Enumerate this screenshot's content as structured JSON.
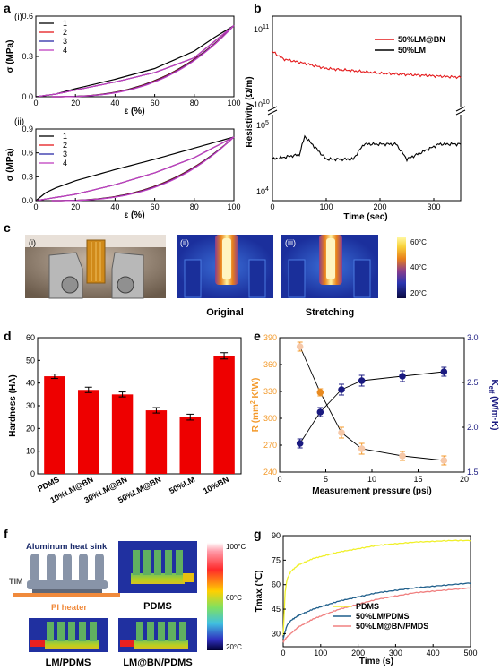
{
  "panels": {
    "a": {
      "letter": "a",
      "sub1": "(i)",
      "sub2": "(ii)",
      "ylabel": "σ (MPa)",
      "xlabel": "ε (%)",
      "legend": [
        "1",
        "2",
        "3",
        "4"
      ],
      "colors": [
        "#000000",
        "#e41a1c",
        "#2b2ba8",
        "#c040c0"
      ],
      "ticks_x": [
        "0",
        "20",
        "40",
        "60",
        "80",
        "100"
      ],
      "ticks_y_i": [
        "0.0",
        "0.3",
        "0.6"
      ],
      "ticks_y_ii": [
        "0.0",
        "0.3",
        "0.6",
        "0.9"
      ]
    },
    "b": {
      "letter": "b",
      "ylabel": "Resistivity (Ω/m)",
      "xlabel": "Time (sec)",
      "legend": [
        "50%LM@BN",
        "50%LM"
      ],
      "colors": [
        "#e41a1c",
        "#000000"
      ],
      "ticks_x": [
        "0",
        "100",
        "200",
        "300"
      ],
      "ytick_top": "10",
      "ytick_top_exp": "11",
      "ytick_mid": "10",
      "ytick_mid_exp": "10",
      "ytick_low": "10",
      "ytick_low_exp": "5",
      "ytick_bot": "10",
      "ytick_bot_exp": "4"
    },
    "c": {
      "letter": "c",
      "sub1": "(i)",
      "sub2": "(ii)",
      "sub3": "(iii)",
      "caption2": "Original",
      "caption3": "Stretching",
      "scale": [
        "60°C",
        "40°C",
        "20°C"
      ]
    },
    "d": {
      "letter": "d",
      "ylabel": "Hardness (HA)",
      "bar_color": "#ee0000",
      "ticks_y": [
        "0",
        "10",
        "20",
        "30",
        "40",
        "50",
        "60"
      ]
    },
    "e": {
      "letter": "e",
      "ylabel_left": "R (mm",
      "ylabel_left_sup": "2",
      "ylabel_left_end": " K/W)",
      "ylabel_right": "K",
      "ylabel_right_sub": "eff",
      "ylabel_right_end": " (W/m·K)",
      "xlabel": "Measurement pressure (psi)",
      "left_color": "#f39a2b",
      "right_color": "#1a1a80",
      "ticks_x": [
        "0",
        "5",
        "10",
        "15",
        "20"
      ],
      "ticks_left": [
        "240",
        "270",
        "300",
        "330",
        "360",
        "390"
      ],
      "ticks_right": [
        "1.5",
        "2.0",
        "2.5",
        "3.0"
      ]
    },
    "f": {
      "letter": "f",
      "label_sink": "Aluminum heat sink",
      "label_tim": "TIM",
      "label_heater": "PI heater",
      "caption_pdms": "PDMS",
      "caption_lm": "LM/PDMS",
      "caption_lmbn": "LM@BN/PDMS",
      "scale": [
        "100°C",
        "60°C",
        "20°C"
      ]
    },
    "g": {
      "letter": "g",
      "ylabel": "Tmax (℃)",
      "xlabel": "Time (s)",
      "legend": [
        "PDMS",
        "50%LM/PDMS",
        "50%LM@BN/PMDS"
      ],
      "colors": [
        "#f0f02a",
        "#1f5f8b",
        "#f08080"
      ],
      "ticks_x": [
        "0",
        "100",
        "200",
        "300",
        "400",
        "500"
      ],
      "ticks_y": [
        "30",
        "45",
        "60",
        "75",
        "90"
      ]
    }
  },
  "chart_data": [
    {
      "type": "line",
      "panel": "a(i)",
      "xlabel": "ε (%)",
      "ylabel": "σ (MPa)",
      "xlim": [
        0,
        100
      ],
      "ylim": [
        0,
        0.6
      ],
      "series": [
        {
          "name": "1",
          "x": [
            0,
            10,
            20,
            40,
            60,
            80,
            90,
            100
          ],
          "y": [
            0,
            0.02,
            0.06,
            0.13,
            0.21,
            0.34,
            0.44,
            0.53
          ]
        },
        {
          "name": "2",
          "x": [
            0,
            10,
            20,
            40,
            60,
            80,
            100
          ],
          "y": [
            0,
            0.02,
            0.05,
            0.11,
            0.18,
            0.29,
            0.53
          ]
        },
        {
          "name": "3",
          "x": [
            0,
            10,
            20,
            40,
            60,
            80,
            100
          ],
          "y": [
            0,
            0.02,
            0.05,
            0.11,
            0.18,
            0.29,
            0.53
          ]
        },
        {
          "name": "4",
          "x": [
            0,
            10,
            20,
            40,
            60,
            80,
            100
          ],
          "y": [
            0,
            0.02,
            0.05,
            0.11,
            0.18,
            0.29,
            0.53
          ]
        }
      ]
    },
    {
      "type": "line",
      "panel": "a(ii)",
      "xlabel": "ε (%)",
      "ylabel": "σ (MPa)",
      "xlim": [
        0,
        100
      ],
      "ylim": [
        0,
        0.9
      ],
      "series": [
        {
          "name": "1",
          "x": [
            0,
            5,
            10,
            20,
            40,
            60,
            80,
            100
          ],
          "y": [
            0,
            0.1,
            0.16,
            0.25,
            0.39,
            0.52,
            0.66,
            0.8
          ]
        },
        {
          "name": "2",
          "x": [
            0,
            20,
            40,
            60,
            80,
            100
          ],
          "y": [
            0,
            0.08,
            0.2,
            0.35,
            0.54,
            0.8
          ]
        },
        {
          "name": "3",
          "x": [
            0,
            20,
            40,
            60,
            80,
            100
          ],
          "y": [
            0,
            0.08,
            0.2,
            0.35,
            0.54,
            0.8
          ]
        },
        {
          "name": "4",
          "x": [
            0,
            20,
            40,
            60,
            80,
            100
          ],
          "y": [
            0,
            0.08,
            0.2,
            0.35,
            0.54,
            0.8
          ]
        }
      ]
    },
    {
      "type": "line",
      "panel": "b",
      "xlabel": "Time (sec)",
      "ylabel": "Resistivity (Ω/m)",
      "xlim": [
        0,
        350
      ],
      "series": [
        {
          "name": "50%LM@BN",
          "x": [
            0,
            20,
            60,
            100,
            150,
            200,
            250,
            300,
            350
          ],
          "y": [
            50000000000.0,
            40000000000.0,
            35000000000.0,
            30000000000.0,
            28000000000.0,
            26000000000.0,
            25000000000.0,
            24000000000.0,
            23000000000.0
          ]
        },
        {
          "name": "50%LM",
          "x": [
            0,
            50,
            60,
            100,
            150,
            170,
            230,
            250,
            310,
            350
          ],
          "y": [
            30000.0,
            35000.0,
            65000.0,
            30000.0,
            30000.0,
            50000.0,
            50000.0,
            30000.0,
            50000.0,
            50000.0
          ]
        }
      ]
    },
    {
      "type": "bar",
      "panel": "d",
      "ylabel": "Hardness (HA)",
      "ylim": [
        0,
        60
      ],
      "categories": [
        "PDMS",
        "10%LM@BN",
        "30%LM@BN",
        "50%LM@BN",
        "50%LM",
        "10%BN"
      ],
      "values": [
        43,
        37,
        35,
        28,
        25,
        52
      ],
      "errors": [
        0.4,
        0.6,
        0.5,
        0.6,
        0.7,
        0.8
      ]
    },
    {
      "type": "line",
      "panel": "e",
      "xlabel": "Measurement pressure (psi)",
      "xlim": [
        0,
        20
      ],
      "series": [
        {
          "axis": "left",
          "ylim": [
            240,
            390
          ],
          "x": [
            2.2,
            4.4,
            6.7,
            8.9,
            13.3,
            17.8
          ],
          "y": [
            380,
            329,
            284,
            266,
            258,
            253
          ],
          "err": [
            5,
            4,
            6,
            6,
            5,
            5
          ]
        },
        {
          "axis": "right",
          "ylim": [
            1.5,
            3.0
          ],
          "x": [
            2.2,
            4.4,
            6.7,
            8.9,
            13.3,
            17.8
          ],
          "y": [
            1.82,
            2.17,
            2.42,
            2.52,
            2.57,
            2.62
          ],
          "err": [
            0.05,
            0.05,
            0.06,
            0.06,
            0.06,
            0.05
          ]
        }
      ]
    },
    {
      "type": "line",
      "panel": "g",
      "xlabel": "Time (s)",
      "ylabel": "Tmax (℃)",
      "xlim": [
        0,
        500
      ],
      "ylim": [
        22,
        90
      ],
      "series": [
        {
          "name": "PDMS",
          "x": [
            0,
            5,
            10,
            20,
            40,
            80,
            150,
            250,
            350,
            450,
            500
          ],
          "y": [
            29,
            55,
            63,
            68,
            72,
            76,
            80,
            84,
            86,
            87,
            87
          ]
        },
        {
          "name": "50%LM/PDMS",
          "x": [
            0,
            10,
            20,
            40,
            80,
            150,
            250,
            350,
            450,
            500
          ],
          "y": [
            27,
            35,
            38,
            41,
            45,
            50,
            55,
            58,
            60,
            61
          ]
        },
        {
          "name": "50%LM@BN/PMDS",
          "x": [
            0,
            10,
            20,
            40,
            80,
            150,
            250,
            350,
            450,
            500
          ],
          "y": [
            25,
            28,
            30,
            34,
            39,
            45,
            51,
            55,
            57,
            58
          ]
        }
      ]
    }
  ]
}
